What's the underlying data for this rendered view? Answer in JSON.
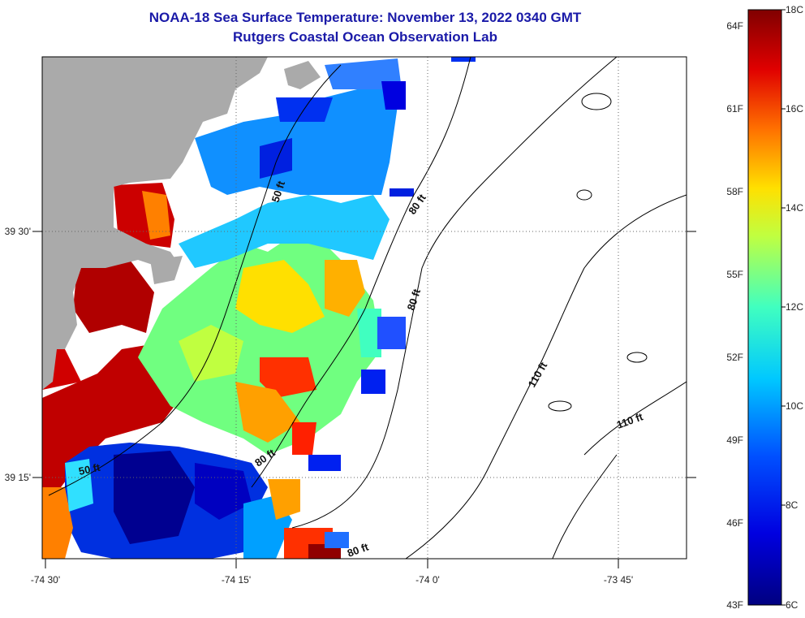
{
  "title": "NOAA-18 Sea Surface Temperature:  November 13, 2022 0340 GMT",
  "subtitle": "Rutgers Coastal Ocean Observation Lab",
  "axes": {
    "lon_ticks": [
      "-74 30'",
      "-74 15'",
      "-74 0'",
      "-73 45'"
    ],
    "lat_ticks": [
      "39 30'",
      "39 15'"
    ]
  },
  "contours": [
    {
      "label": "50 ft"
    },
    {
      "label": "50 ft"
    },
    {
      "label": "80 ft"
    },
    {
      "label": "80 ft"
    },
    {
      "label": "80 ft"
    },
    {
      "label": "80 ft"
    },
    {
      "label": "110 ft"
    },
    {
      "label": "110 ft"
    }
  ],
  "colorbar": {
    "celsius_labels": [
      "18C",
      "16C",
      "14C",
      "12C",
      "10C",
      "8C",
      "6C"
    ],
    "fahrenheit_labels": [
      "64F",
      "61F",
      "58F",
      "55F",
      "52F",
      "49F",
      "46F",
      "43F"
    ],
    "range_c": [
      6,
      18
    ]
  },
  "colors": {
    "land": "#aaaaaa",
    "title": "#1a1aa8",
    "no_data": "#ffffff"
  }
}
